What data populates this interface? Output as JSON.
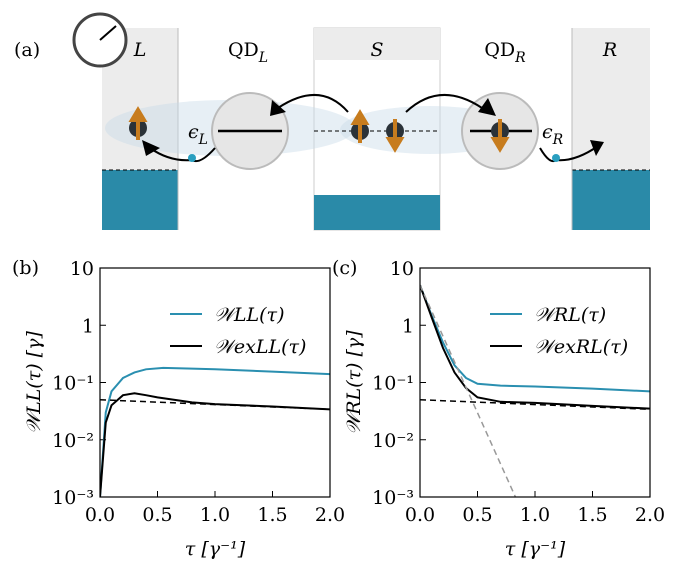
{
  "diagram": {
    "panel_label": "(a)",
    "labels": [
      {
        "text": "L"
      },
      {
        "text": "QD",
        "sub": "L"
      },
      {
        "text": "S"
      },
      {
        "text": "QD",
        "sub": "R"
      },
      {
        "text": "R"
      },
      {
        "text": "ϵ",
        "sub": "L"
      },
      {
        "text": "ϵ",
        "sub": "R"
      }
    ]
  },
  "chart_data": [
    {
      "type": "line",
      "panel_label": "(b)",
      "x_label": "τ [γ⁻¹]",
      "y_label": "𝒲LL(τ) [γ]",
      "log_y": true,
      "legend": "upper right",
      "xlim": [
        0,
        2
      ],
      "xticks": [
        {
          "value": 0,
          "label": "0.0"
        },
        0.5,
        {
          "value": 1,
          "label": "1.0"
        },
        1.5,
        {
          "value": 2,
          "label": "2.0"
        }
      ],
      "ylim": [
        0.001,
        10
      ],
      "yticks": [
        {
          "value": 0.001,
          "label": "10⁻³"
        },
        {
          "value": 0.01,
          "label": "10⁻²"
        },
        {
          "value": 0.1,
          "label": "10⁻¹"
        },
        1,
        10
      ],
      "series": [
        {
          "name": "𝒲LL(τ)",
          "color": "#2a8fb0",
          "x": [
            0,
            0.05,
            0.1,
            0.2,
            0.3,
            0.4,
            0.55,
            0.8,
            1.0,
            1.5,
            2.0
          ],
          "values": [
            0.001,
            0.03,
            0.07,
            0.12,
            0.15,
            0.17,
            0.18,
            0.175,
            0.17,
            0.155,
            0.14
          ]
        },
        {
          "name": "𝒲exLL(τ)",
          "color": "#000000",
          "x": [
            0,
            0.05,
            0.1,
            0.2,
            0.3,
            0.4,
            0.5,
            0.8,
            1.0,
            1.5,
            2.0
          ],
          "values": [
            0.001,
            0.02,
            0.04,
            0.06,
            0.065,
            0.06,
            0.055,
            0.045,
            0.042,
            0.038,
            0.034
          ]
        },
        {
          "color": "#000000",
          "dash": true,
          "x": [
            0,
            2.0
          ],
          "values": [
            0.05,
            0.034
          ]
        }
      ]
    },
    {
      "type": "line",
      "panel_label": "(c)",
      "x_label": "τ [γ⁻¹]",
      "y_label": "𝒲RL(τ) [γ]",
      "log_y": true,
      "legend": "upper right",
      "xlim": [
        0,
        2
      ],
      "xticks": [
        {
          "value": 0,
          "label": "0.0"
        },
        0.5,
        {
          "value": 1,
          "label": "1.0"
        },
        1.5,
        {
          "value": 2,
          "label": "2.0"
        }
      ],
      "ylim": [
        0.001,
        10
      ],
      "yticks": [
        {
          "value": 0.001,
          "label": "10⁻³"
        },
        {
          "value": 0.01,
          "label": "10⁻²"
        },
        {
          "value": 0.1,
          "label": "10⁻¹"
        },
        1,
        10
      ],
      "series": [
        {
          "name": "𝒲RL(τ)",
          "color": "#2a8fb0",
          "x": [
            0,
            0.1,
            0.2,
            0.3,
            0.4,
            0.5,
            0.7,
            1.0,
            1.5,
            2.0
          ],
          "values": [
            5,
            1.5,
            0.5,
            0.2,
            0.12,
            0.095,
            0.088,
            0.085,
            0.078,
            0.07
          ]
        },
        {
          "name": "𝒲exRL(τ)",
          "color": "#000000",
          "x": [
            0,
            0.1,
            0.2,
            0.3,
            0.4,
            0.5,
            0.7,
            1.0,
            1.5,
            2.0
          ],
          "values": [
            5,
            1.4,
            0.4,
            0.15,
            0.08,
            0.055,
            0.046,
            0.044,
            0.039,
            0.035
          ]
        },
        {
          "color": "#000000",
          "dash": true,
          "x": [
            0,
            2.0
          ],
          "values": [
            0.05,
            0.034
          ]
        },
        {
          "color": "#999999",
          "dash": true,
          "x": [
            0,
            0.83
          ],
          "values": [
            5,
            0.001
          ]
        }
      ]
    }
  ]
}
